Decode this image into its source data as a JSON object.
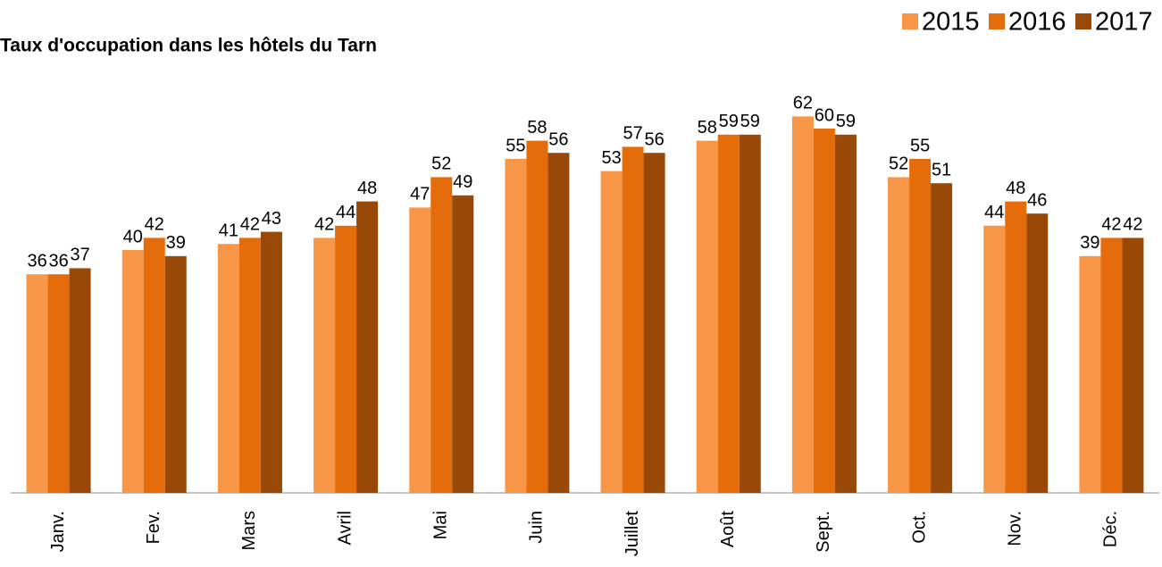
{
  "chart_data": {
    "type": "bar",
    "title": "Taux d'occupation dans les hôtels du Tarn",
    "categories": [
      "Janv.",
      "Fev.",
      "Mars",
      "Avril",
      "Mai",
      "Juin",
      "Juillet",
      "Août",
      "Sept.",
      "Oct.",
      "Nov.",
      "Déc."
    ],
    "series": [
      {
        "name": "2015",
        "color": "#f79646",
        "values": [
          36,
          40,
          41,
          42,
          47,
          55,
          53,
          58,
          62,
          52,
          44,
          39
        ]
      },
      {
        "name": "2016",
        "color": "#e46c0a",
        "values": [
          36,
          42,
          42,
          44,
          52,
          58,
          57,
          59,
          60,
          55,
          48,
          42
        ]
      },
      {
        "name": "2017",
        "color": "#984807",
        "values": [
          37,
          39,
          43,
          48,
          49,
          56,
          56,
          59,
          59,
          51,
          46,
          42
        ]
      }
    ],
    "ylim": [
      0,
      70
    ],
    "legend": "top-right"
  }
}
